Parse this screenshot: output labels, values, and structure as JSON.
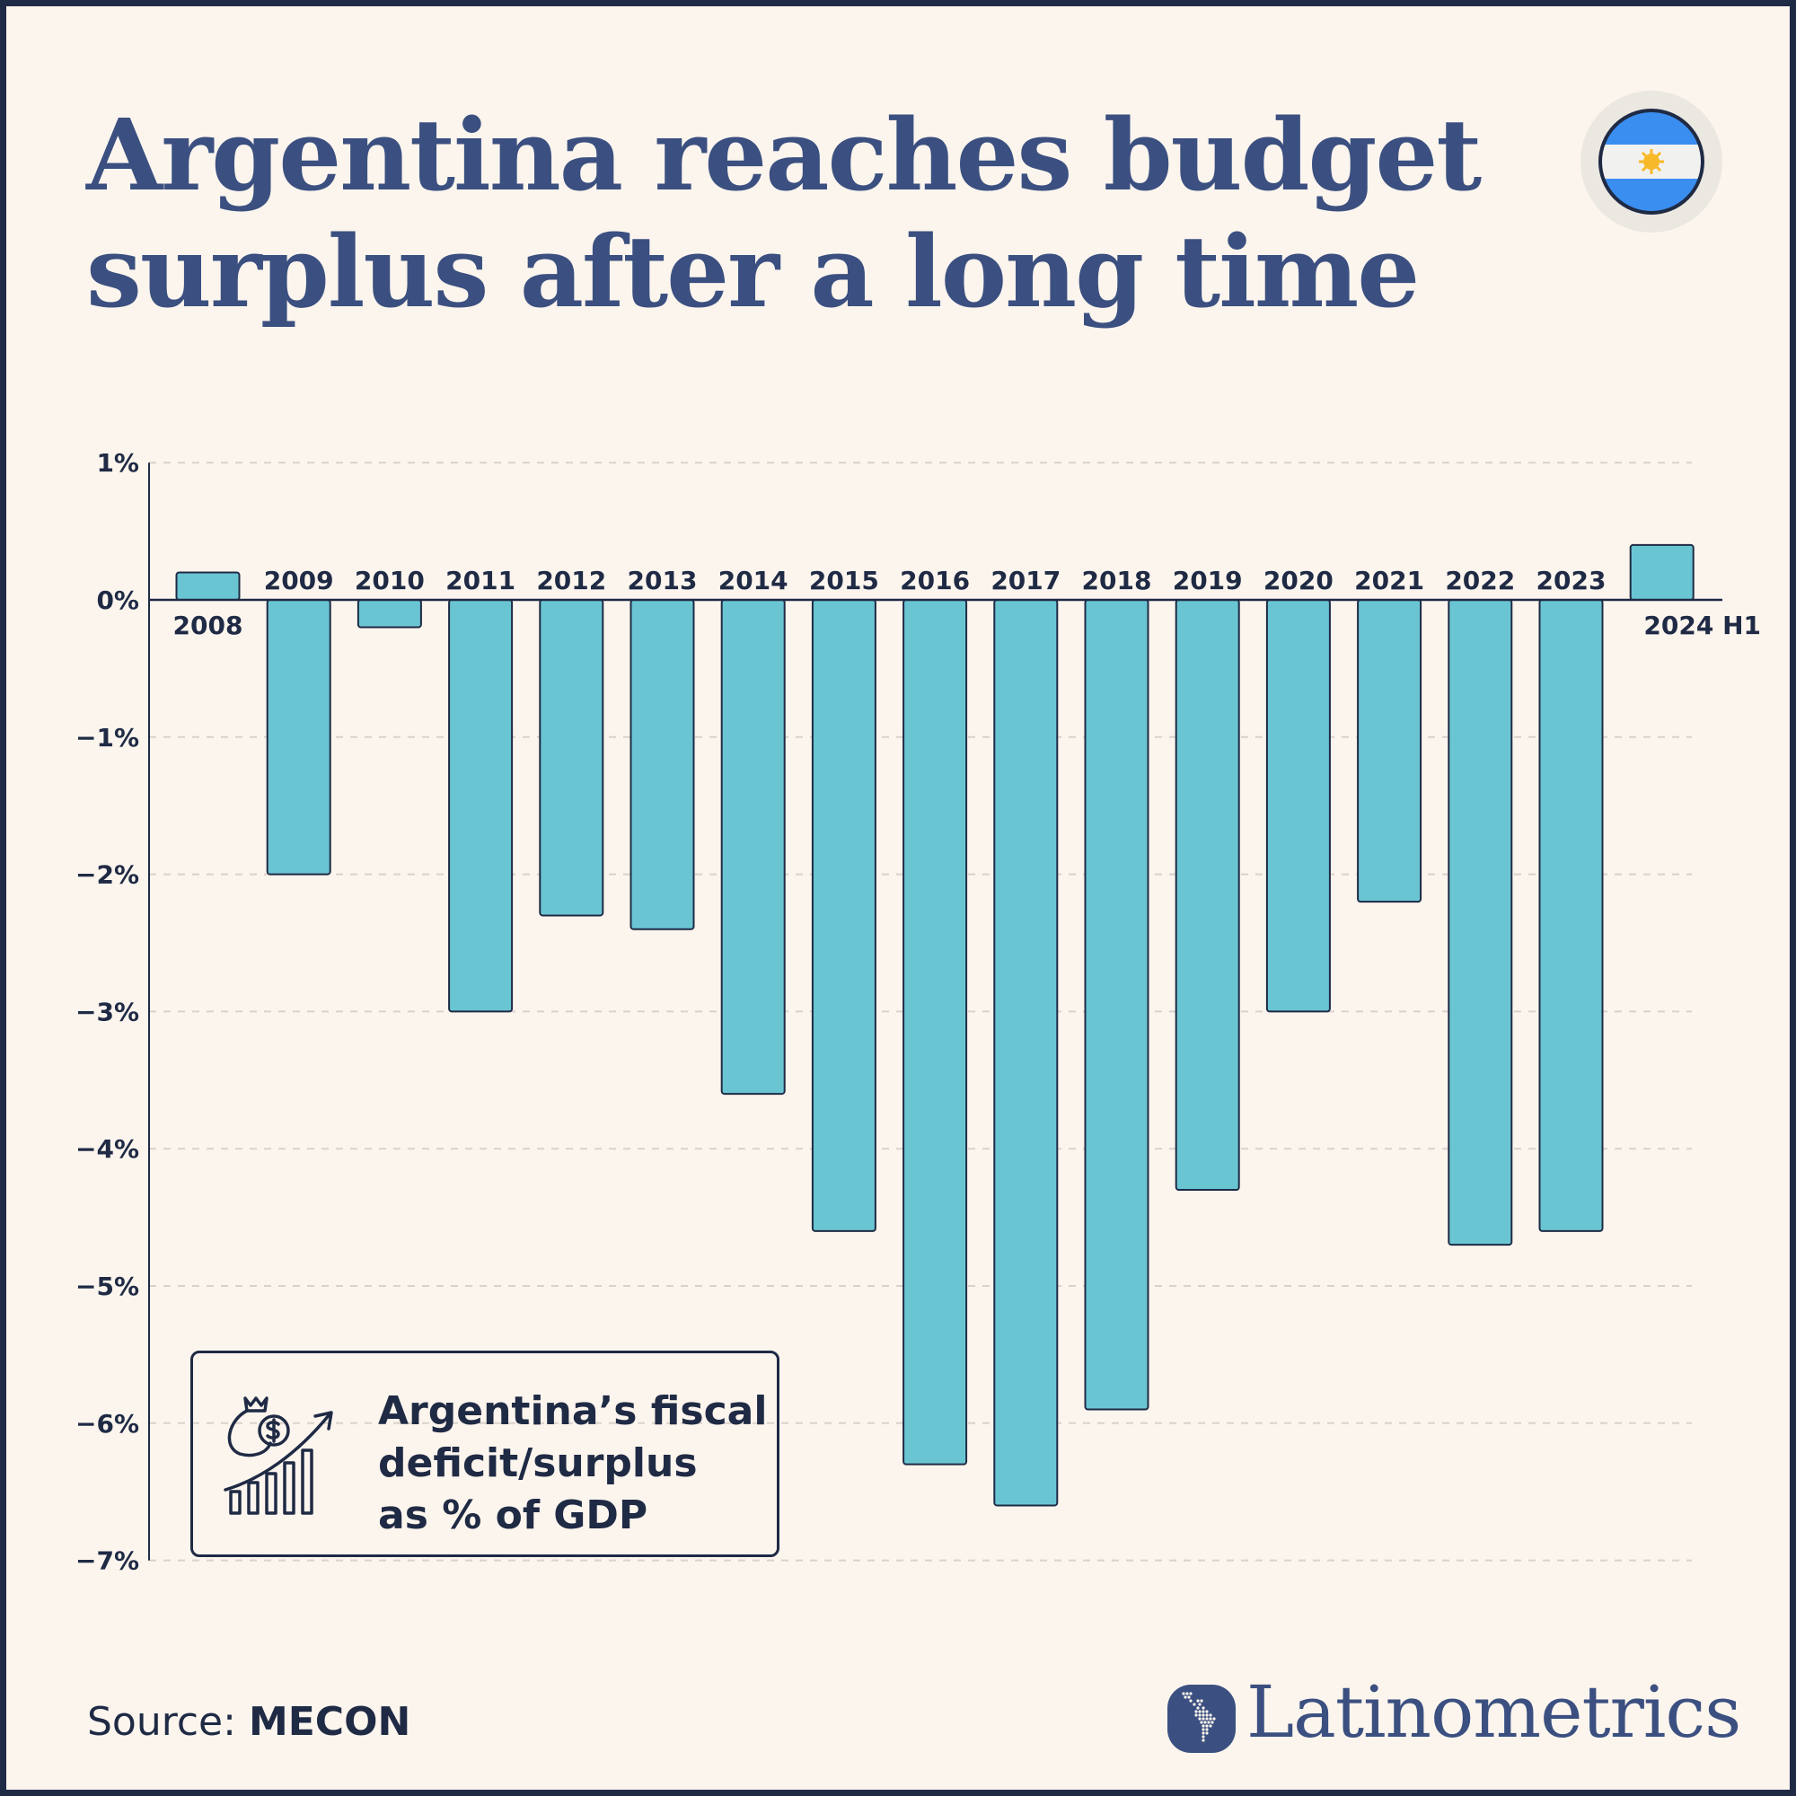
{
  "title": {
    "line1": "Argentina reaches budget",
    "line2": "surplus after a long time"
  },
  "flag_icon": "argentina-flag",
  "legend": {
    "icon": "money-bag-growth-chart-icon",
    "line1": "Argentina’s fiscal",
    "line2": "deficit/surplus",
    "line3": "as % of GDP"
  },
  "source": {
    "label": "Source:",
    "value": "MECON"
  },
  "brand": {
    "name": "Latinometrics",
    "icon": "latin-america-map-dots-icon"
  },
  "colors": {
    "bar": "#6ac5d2",
    "bar_outline": "#1f2a44",
    "title": "#3b5080",
    "background": "#fcf5ee",
    "frame": "#1f2a44"
  },
  "chart_data": {
    "type": "bar",
    "title": "",
    "xlabel": "",
    "ylabel": "",
    "categories": [
      "2008",
      "2009",
      "2010",
      "2011",
      "2012",
      "2013",
      "2014",
      "2015",
      "2016",
      "2017",
      "2018",
      "2019",
      "2020",
      "2021",
      "2022",
      "2023",
      "2024 H1"
    ],
    "values": [
      0.2,
      -2.0,
      -0.2,
      -3.0,
      -2.3,
      -2.4,
      -3.6,
      -4.6,
      -6.3,
      -6.6,
      -5.9,
      -4.3,
      -3.0,
      -2.2,
      -4.7,
      -4.6,
      0.4
    ],
    "unit": "% of GDP",
    "ylim": [
      -7,
      1
    ],
    "yticks": [
      1,
      0,
      -1,
      -2,
      -3,
      -4,
      -5,
      -6,
      -7
    ],
    "ytick_labels": [
      "1%",
      "0%",
      "−1%",
      "−2%",
      "−3%",
      "−4%",
      "−5%",
      "−6%",
      "−7%"
    ],
    "grid": "horizontal dashed",
    "legend": "none"
  }
}
